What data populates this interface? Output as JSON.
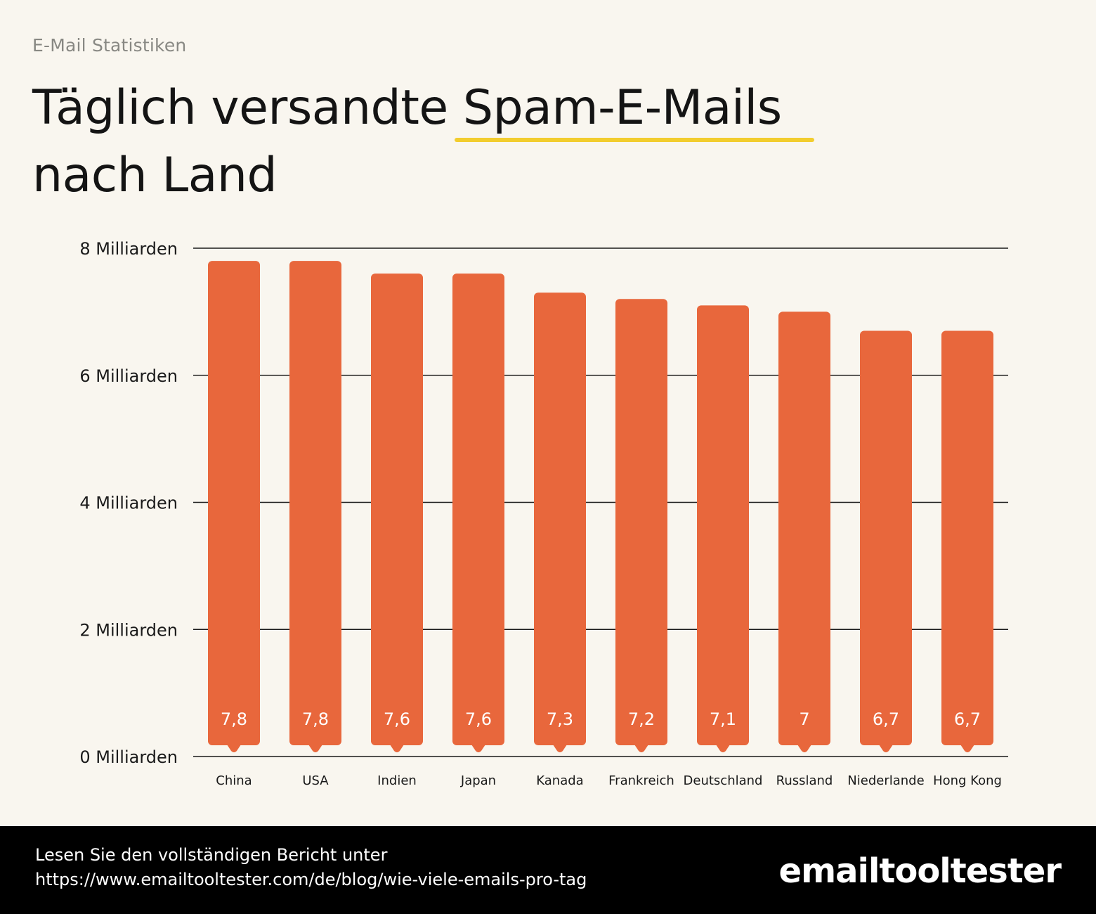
{
  "header": {
    "eyebrow": "E-Mail Statistiken",
    "title_part1": "Täglich versandte ",
    "title_highlight": "Spam-E-Mails",
    "title_part2": "nach Land",
    "highlight_color": "#f2cd2e"
  },
  "chart_data": {
    "type": "bar",
    "title": "Täglich versandte Spam-E-Mails nach Land",
    "xlabel": "",
    "ylabel": "",
    "categories": [
      "China",
      "USA",
      "Indien",
      "Japan",
      "Kanada",
      "Frankreich",
      "Deutschland",
      "Russland",
      "Niederlande",
      "Hong Kong"
    ],
    "values": [
      7.8,
      7.8,
      7.6,
      7.6,
      7.3,
      7.2,
      7.1,
      7,
      6.7,
      6.7
    ],
    "data_labels": [
      "7,8",
      "7,8",
      "7,6",
      "7,6",
      "7,3",
      "7,2",
      "7,1",
      "7",
      "6,7",
      "6,7"
    ],
    "ylim": [
      0,
      8
    ],
    "yticks": [
      0,
      2,
      4,
      6,
      8
    ],
    "ytick_labels": [
      "0 Milliarden",
      "2 Milliarden",
      "4 Milliarden",
      "6 Milliarden",
      "8 Milliarden"
    ],
    "grid": true,
    "legend": "none",
    "bar_color": "#e8673c",
    "label_color": "#ffffff"
  },
  "footer": {
    "line1": "Lesen Sie den vollständigen Bericht unter",
    "line2": "https://www.emailtooltester.com/de/blog/wie-viele-emails-pro-tag",
    "logo_text": "emailtooltester"
  }
}
